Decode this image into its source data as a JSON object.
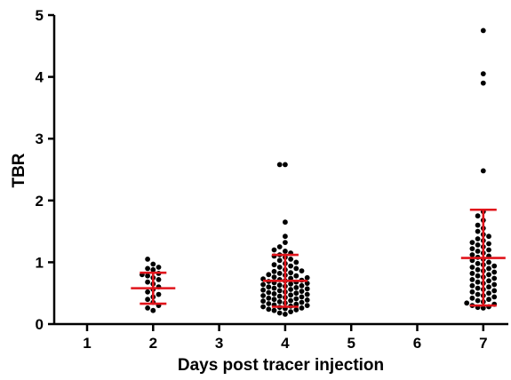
{
  "chart_data": {
    "type": "scatter",
    "title": "",
    "xlabel": "Days post tracer injection",
    "ylabel": "TBR",
    "x_ticks": [
      "1",
      "2",
      "3",
      "4",
      "5",
      "6",
      "7"
    ],
    "y_ticks": [
      "0",
      "1",
      "2",
      "3",
      "4",
      "5"
    ],
    "ylim": [
      0,
      5
    ],
    "xlim": [
      0.5,
      7.45
    ],
    "grid": false,
    "legend": "none",
    "colors": {
      "points": "#000000",
      "stats": "#e0141b"
    },
    "groups": [
      {
        "day": 2,
        "mean": 0.58,
        "sd_low": 0.33,
        "sd_high": 0.83,
        "values": [
          1.05,
          0.97,
          0.92,
          0.9,
          0.88,
          0.82,
          0.8,
          0.78,
          0.75,
          0.72,
          0.68,
          0.65,
          0.6,
          0.56,
          0.52,
          0.48,
          0.44,
          0.4,
          0.35,
          0.3,
          0.26,
          0.22
        ]
      },
      {
        "day": 4,
        "mean": 0.7,
        "sd_low": 0.28,
        "sd_high": 1.12,
        "values": [
          2.58,
          2.58,
          1.65,
          1.42,
          1.32,
          1.25,
          1.2,
          1.18,
          1.15,
          1.12,
          1.1,
          1.08,
          1.05,
          1.03,
          1.0,
          0.98,
          0.96,
          0.94,
          0.92,
          0.9,
          0.88,
          0.86,
          0.85,
          0.83,
          0.82,
          0.8,
          0.79,
          0.78,
          0.76,
          0.75,
          0.74,
          0.73,
          0.72,
          0.71,
          0.7,
          0.69,
          0.68,
          0.67,
          0.66,
          0.65,
          0.64,
          0.63,
          0.62,
          0.61,
          0.6,
          0.59,
          0.58,
          0.57,
          0.56,
          0.55,
          0.54,
          0.53,
          0.52,
          0.51,
          0.5,
          0.49,
          0.48,
          0.47,
          0.46,
          0.45,
          0.44,
          0.43,
          0.42,
          0.41,
          0.4,
          0.39,
          0.38,
          0.37,
          0.36,
          0.35,
          0.34,
          0.33,
          0.32,
          0.31,
          0.3,
          0.29,
          0.28,
          0.27,
          0.26,
          0.25,
          0.24,
          0.23,
          0.22,
          0.2,
          0.18,
          0.16
        ]
      },
      {
        "day": 7,
        "mean": 1.07,
        "sd_low": 0.3,
        "sd_high": 1.85,
        "values": [
          4.75,
          4.05,
          3.9,
          2.48,
          1.82,
          1.75,
          1.68,
          1.6,
          1.55,
          1.5,
          1.45,
          1.42,
          1.38,
          1.35,
          1.32,
          1.3,
          1.28,
          1.25,
          1.22,
          1.2,
          1.18,
          1.15,
          1.12,
          1.1,
          1.08,
          1.05,
          1.03,
          1.0,
          0.98,
          0.96,
          0.94,
          0.92,
          0.9,
          0.88,
          0.86,
          0.84,
          0.82,
          0.8,
          0.78,
          0.76,
          0.74,
          0.72,
          0.7,
          0.68,
          0.66,
          0.64,
          0.62,
          0.6,
          0.58,
          0.56,
          0.54,
          0.52,
          0.5,
          0.48,
          0.46,
          0.44,
          0.42,
          0.4,
          0.38,
          0.36,
          0.34,
          0.32,
          0.3,
          0.28,
          0.27,
          0.26
        ]
      }
    ]
  }
}
